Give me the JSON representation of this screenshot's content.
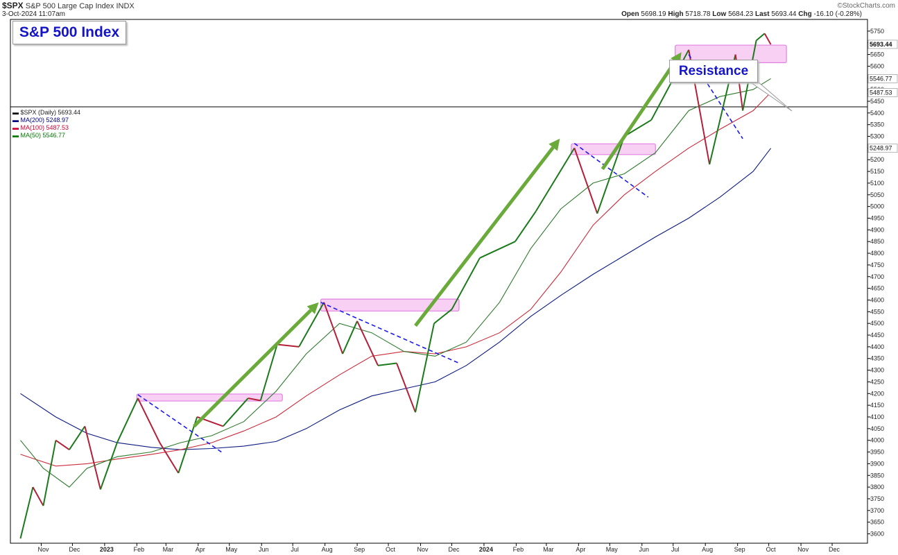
{
  "header": {
    "symbol": "$SPX",
    "name": "S&P 500 Large Cap Index",
    "exchange": "INDX",
    "timestamp": "3-Oct-2024 11:07am",
    "source": "©StockCharts.com",
    "open_label": "Open",
    "open": "5698.19",
    "high_label": "High",
    "high": "5718.78",
    "low_label": "Low",
    "low": "5684.23",
    "last_label": "Last",
    "last": "5693.44",
    "chg_label": "Chg",
    "chg": "-16.10 (-0.28%)"
  },
  "annotations": {
    "title": "S&P 500 Index",
    "resistance": "Resistance"
  },
  "legend": [
    {
      "text": "$SPX (Daily) 5693.44",
      "color": "#000000"
    },
    {
      "text": "MA(200) 5248.97",
      "color": "#000080"
    },
    {
      "text": "MA(100) 5487.53",
      "color": "#cc0033"
    },
    {
      "text": "MA(50) 5546.77",
      "color": "#007700"
    }
  ],
  "colors": {
    "price_up": "#1a7a1a",
    "price_down": "#b41e38",
    "ma200": "#0a1a80",
    "ma100": "#cc2a3a",
    "ma50": "#2d7a2d",
    "zone": "#f6c0f0",
    "zone_border": "#e080e0",
    "arrow": "#6aaa3a",
    "trendline": "#1a1aee"
  },
  "chart_data": {
    "type": "line",
    "title": "S&P 500 Index",
    "xlabel": "",
    "ylabel": "",
    "ylim": [
      3560,
      5800
    ],
    "x_ticks": [
      "Nov",
      "Dec",
      "2023",
      "Feb",
      "Mar",
      "Apr",
      "May",
      "Jun",
      "Jul",
      "Aug",
      "Sep",
      "Oct",
      "Nov",
      "Dec",
      "2024",
      "Feb",
      "Mar",
      "Apr",
      "May",
      "Jun",
      "Jul",
      "Aug",
      "Sep",
      "Oct",
      "Nov",
      "Dec"
    ],
    "y_ticks": [
      3600,
      3650,
      3700,
      3750,
      3800,
      3850,
      3900,
      3950,
      4000,
      4050,
      4100,
      4150,
      4200,
      4250,
      4300,
      4350,
      4400,
      4450,
      4500,
      4550,
      4600,
      4650,
      4700,
      4750,
      4800,
      4850,
      4900,
      4950,
      5000,
      5050,
      5100,
      5150,
      5200,
      5250,
      5300,
      5350,
      5400,
      5450,
      5500,
      5550,
      5600,
      5650,
      5700,
      5750
    ],
    "right_labels": [
      "5693.44",
      "5546.77",
      "5487.53",
      "5248.97"
    ],
    "series": [
      {
        "name": "$SPX (Daily)",
        "x": [
          "2022-10-12",
          "2022-10-24",
          "2022-11-03",
          "2022-11-15",
          "2022-11-28",
          "2022-12-13",
          "2022-12-28",
          "2023-01-13",
          "2023-02-02",
          "2023-02-23",
          "2023-03-13",
          "2023-03-31",
          "2023-04-25",
          "2023-05-19",
          "2023-05-31",
          "2023-06-16",
          "2023-07-07",
          "2023-07-31",
          "2023-08-18",
          "2023-09-01",
          "2023-09-21",
          "2023-10-09",
          "2023-10-27",
          "2023-11-14",
          "2023-12-01",
          "2023-12-28",
          "2024-01-31",
          "2024-02-20",
          "2024-03-28",
          "2024-04-19",
          "2024-05-15",
          "2024-06-10",
          "2024-07-16",
          "2024-08-05",
          "2024-08-30",
          "2024-09-06",
          "2024-09-19",
          "2024-09-27",
          "2024-10-03"
        ],
        "y": [
          3580,
          3800,
          3720,
          4000,
          3960,
          4060,
          3790,
          3990,
          4180,
          3990,
          3860,
          4100,
          4060,
          4180,
          4170,
          4410,
          4400,
          4590,
          4370,
          4510,
          4320,
          4330,
          4120,
          4500,
          4560,
          4780,
          4850,
          4980,
          5250,
          4970,
          5300,
          5370,
          5670,
          5180,
          5650,
          5410,
          5710,
          5740,
          5693
        ]
      },
      {
        "name": "MA(200)",
        "x": [
          "2022-10-12",
          "2022-11-15",
          "2022-12-15",
          "2023-01-13",
          "2023-02-15",
          "2023-03-15",
          "2023-04-14",
          "2023-05-15",
          "2023-06-15",
          "2023-07-14",
          "2023-08-15",
          "2023-09-15",
          "2023-10-16",
          "2023-11-15",
          "2023-12-15",
          "2024-01-16",
          "2024-02-15",
          "2024-03-15",
          "2024-04-15",
          "2024-05-15",
          "2024-06-14",
          "2024-07-16",
          "2024-08-15",
          "2024-09-16",
          "2024-10-03"
        ],
        "y": [
          4200,
          4100,
          4030,
          3990,
          3970,
          3960,
          3965,
          3975,
          3995,
          4050,
          4130,
          4190,
          4220,
          4250,
          4320,
          4420,
          4530,
          4620,
          4710,
          4790,
          4870,
          4950,
          5040,
          5150,
          5249
        ]
      },
      {
        "name": "MA(100)",
        "x": [
          "2022-10-12",
          "2022-11-15",
          "2022-12-15",
          "2023-01-13",
          "2023-02-15",
          "2023-03-15",
          "2023-04-14",
          "2023-05-15",
          "2023-06-15",
          "2023-07-14",
          "2023-08-15",
          "2023-09-15",
          "2023-10-16",
          "2023-11-15",
          "2023-12-15",
          "2024-01-16",
          "2024-02-15",
          "2024-03-15",
          "2024-04-15",
          "2024-05-15",
          "2024-06-14",
          "2024-07-16",
          "2024-08-15",
          "2024-09-16",
          "2024-10-03"
        ],
        "y": [
          3940,
          3890,
          3900,
          3920,
          3940,
          3960,
          3990,
          4040,
          4100,
          4190,
          4280,
          4360,
          4380,
          4370,
          4400,
          4460,
          4560,
          4720,
          4920,
          5050,
          5150,
          5250,
          5330,
          5410,
          5488
        ]
      },
      {
        "name": "MA(50)",
        "x": [
          "2022-10-12",
          "2022-11-03",
          "2022-11-28",
          "2022-12-15",
          "2023-01-13",
          "2023-02-15",
          "2023-03-15",
          "2023-04-14",
          "2023-05-15",
          "2023-06-15",
          "2023-07-14",
          "2023-08-15",
          "2023-09-15",
          "2023-10-16",
          "2023-11-15",
          "2023-12-15",
          "2024-01-16",
          "2024-02-15",
          "2024-03-15",
          "2024-04-15",
          "2024-05-15",
          "2024-06-14",
          "2024-07-16",
          "2024-08-15",
          "2024-09-16",
          "2024-10-03"
        ],
        "y": [
          4000,
          3880,
          3800,
          3880,
          3930,
          3950,
          3990,
          4020,
          4080,
          4210,
          4370,
          4500,
          4460,
          4380,
          4360,
          4420,
          4590,
          4820,
          4990,
          5100,
          5140,
          5230,
          5410,
          5470,
          5500,
          5547
        ]
      }
    ],
    "resistance_zones": [
      {
        "x": [
          "2023-02-01",
          "2023-06-21"
        ],
        "y": [
          4168,
          4198
        ]
      },
      {
        "x": [
          "2023-07-28",
          "2023-12-08"
        ],
        "y": [
          4553,
          4604
        ]
      },
      {
        "x": [
          "2024-03-25",
          "2024-06-14"
        ],
        "y": [
          5222,
          5268
        ]
      },
      {
        "x": [
          "2024-07-03",
          "2024-10-18"
        ],
        "y": [
          5615,
          5690
        ]
      }
    ],
    "trendlines": [
      {
        "x": [
          "2023-02-02",
          "2023-04-25"
        ],
        "y": [
          4195,
          3945
        ]
      },
      {
        "x": [
          "2023-07-28",
          "2023-12-08"
        ],
        "y": [
          4590,
          4330
        ]
      },
      {
        "x": [
          "2024-03-28",
          "2024-06-07"
        ],
        "y": [
          5270,
          5040
        ]
      },
      {
        "x": [
          "2024-07-16",
          "2024-09-06"
        ],
        "y": [
          5650,
          5290
        ]
      }
    ],
    "trend_arrows": [
      {
        "x": [
          "2023-03-28",
          "2023-07-26"
        ],
        "y": [
          4060,
          4590
        ]
      },
      {
        "x": [
          "2023-10-27",
          "2024-03-14"
        ],
        "y": [
          4490,
          5290
        ]
      },
      {
        "x": [
          "2024-04-24",
          "2024-07-09"
        ],
        "y": [
          5160,
          5660
        ]
      }
    ]
  }
}
